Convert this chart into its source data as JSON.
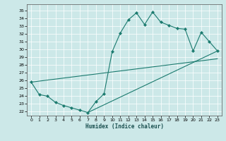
{
  "xlabel": "Humidex (Indice chaleur)",
  "bg_color": "#cce8e8",
  "line_color": "#1a7a6e",
  "xlim": [
    -0.5,
    23.5
  ],
  "ylim": [
    21.5,
    35.8
  ],
  "yticks": [
    22,
    23,
    24,
    25,
    26,
    27,
    28,
    29,
    30,
    31,
    32,
    33,
    34,
    35
  ],
  "xticks": [
    0,
    1,
    2,
    3,
    4,
    5,
    6,
    7,
    8,
    9,
    10,
    11,
    12,
    13,
    14,
    15,
    16,
    17,
    18,
    19,
    20,
    21,
    22,
    23
  ],
  "line1_x": [
    0,
    1,
    2,
    3,
    4,
    5,
    6,
    7,
    8,
    9,
    10,
    11,
    12,
    13,
    14,
    15,
    16,
    17,
    18,
    19,
    20,
    21,
    22,
    23
  ],
  "line1_y": [
    25.8,
    24.2,
    24.0,
    23.2,
    22.8,
    22.5,
    22.2,
    21.9,
    23.3,
    24.3,
    29.7,
    32.1,
    33.8,
    34.7,
    33.2,
    34.8,
    33.5,
    33.1,
    32.7,
    32.6,
    29.8,
    32.2,
    31.0,
    29.8
  ],
  "line2_x": [
    0,
    23
  ],
  "line2_y": [
    25.8,
    28.8
  ],
  "line3_x": [
    7,
    23
  ],
  "line3_y": [
    21.9,
    29.8
  ]
}
